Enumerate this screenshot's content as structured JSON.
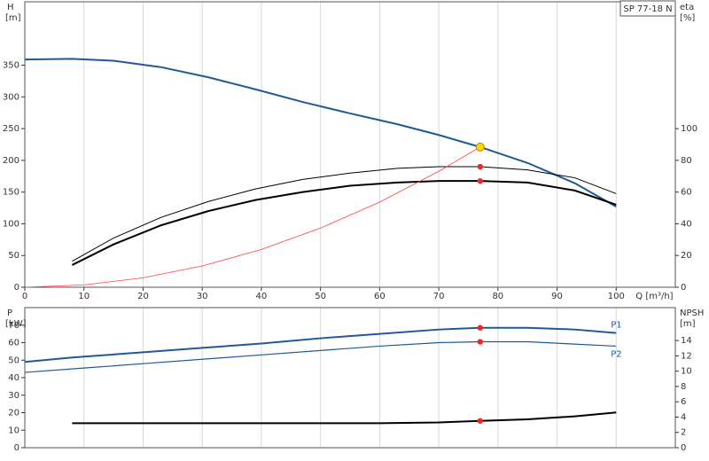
{
  "chart_data": [
    {
      "type": "line",
      "legend_box": "SP 77-18 N",
      "ylabel": "H",
      "yunit": "[m]",
      "y2label": "eta",
      "y2unit": "[%]",
      "xlabel": "Q [m³/h]",
      "xlim": [
        0,
        110
      ],
      "xticks": [
        0,
        10,
        20,
        30,
        40,
        50,
        60,
        70,
        80,
        90,
        100
      ],
      "ylim": [
        0,
        450
      ],
      "yticks": [
        0,
        50,
        100,
        150,
        200,
        250,
        300,
        350
      ],
      "y2lim": [
        0,
        180
      ],
      "y2ticks": [
        0,
        20,
        40,
        60,
        80,
        100
      ],
      "grid": true,
      "series": [
        {
          "color": "#1f5a96",
          "width": 2,
          "x": [
            0,
            8,
            15,
            23,
            31,
            39,
            47,
            55,
            63,
            70,
            77,
            85,
            93,
            100
          ],
          "values": [
            359,
            360,
            357,
            347,
            331,
            312,
            292,
            274,
            257,
            240,
            221,
            196,
            164,
            127
          ]
        },
        {
          "color": "#000000",
          "width": 1,
          "axis": "y2",
          "x": [
            8,
            15,
            23,
            31,
            39,
            47,
            55,
            63,
            70,
            77,
            85,
            93,
            100
          ],
          "values": [
            16.4,
            31,
            44,
            54,
            62,
            68,
            72,
            75,
            76,
            76,
            74,
            69,
            59
          ]
        },
        {
          "color": "#000000",
          "width": 2,
          "axis": "y2",
          "x": [
            8,
            15,
            23,
            31,
            39,
            47,
            55,
            63,
            70,
            77,
            85,
            93,
            100
          ],
          "values": [
            14,
            27,
            39,
            48,
            55,
            60,
            64,
            66,
            67,
            67,
            66,
            61,
            52
          ]
        },
        {
          "color": "#ff4040",
          "width": 0.8,
          "x": [
            0,
            10,
            20,
            30,
            40,
            50,
            60,
            70,
            77
          ],
          "values": [
            0,
            3.7,
            14.9,
            33.5,
            59.6,
            93.2,
            134.2,
            182.7,
            221
          ]
        }
      ],
      "markers": [
        {
          "x": 77,
          "y": 221,
          "color": "#ffd700"
        },
        {
          "x": 77,
          "y": 76,
          "axis": "y2",
          "color": "#ff2020"
        },
        {
          "x": 77,
          "y": 67,
          "axis": "y2",
          "color": "#ff2020"
        }
      ]
    },
    {
      "type": "line",
      "ylabel": "P",
      "yunit": "[kW]",
      "y2label": "NPSH",
      "y2unit": "[m]",
      "xlim": [
        0,
        110
      ],
      "xgrid": [
        10,
        20,
        30,
        40,
        50,
        60,
        70,
        80,
        90,
        100
      ],
      "ylim": [
        0,
        80
      ],
      "yticks": [
        0,
        10,
        20,
        30,
        40,
        50,
        60,
        70
      ],
      "y2lim": [
        0,
        18.3
      ],
      "y2ticks": [
        0,
        2,
        4,
        6,
        8,
        10,
        12,
        14
      ],
      "grid": true,
      "series": [
        {
          "name": "P1",
          "color": "#1f5a96",
          "width": 2,
          "x": [
            0,
            8,
            20,
            30,
            40,
            50,
            60,
            70,
            77,
            85,
            93,
            100
          ],
          "values": [
            49,
            51.5,
            54.5,
            57,
            59.5,
            62.5,
            65,
            67.5,
            68.5,
            68.5,
            67.5,
            65.5
          ]
        },
        {
          "name": "P2",
          "color": "#1f5a96",
          "width": 1.2,
          "x": [
            0,
            10,
            20,
            30,
            40,
            50,
            60,
            70,
            77,
            85,
            100
          ],
          "values": [
            43,
            45.5,
            48,
            50.5,
            53,
            55.5,
            58,
            60,
            60.5,
            60.5,
            58
          ]
        },
        {
          "color": "#000000",
          "width": 2,
          "axis": "y2",
          "x": [
            8,
            20,
            40,
            60,
            70,
            77,
            85,
            93,
            100
          ],
          "values": [
            3.2,
            3.2,
            3.2,
            3.2,
            3.3,
            3.5,
            3.7,
            4.1,
            4.6
          ]
        }
      ],
      "markers": [
        {
          "x": 77,
          "y": 68.5,
          "color": "#ff2020"
        },
        {
          "x": 77,
          "y": 60.5,
          "color": "#ff2020"
        },
        {
          "x": 77,
          "y": 3.5,
          "axis": "y2",
          "color": "#ff2020"
        }
      ]
    }
  ]
}
